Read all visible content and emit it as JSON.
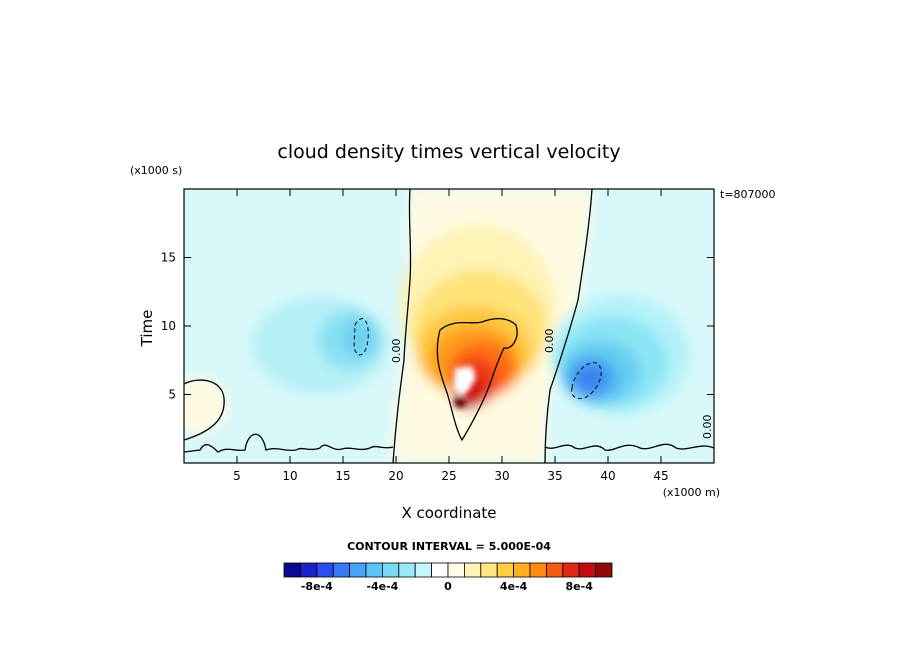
{
  "chart_data": {
    "type": "heatmap",
    "title": "cloud density times vertical velocity",
    "xlabel": "X coordinate",
    "ylabel": "Time",
    "x_unit": "(x1000 m)",
    "y_unit": "(x1000 s)",
    "time_label": "t=807000",
    "xlim": [
      0,
      50
    ],
    "ylim": [
      0,
      20
    ],
    "x_ticks": [
      5,
      10,
      15,
      20,
      25,
      30,
      35,
      40,
      45
    ],
    "y_ticks": [
      5,
      10,
      15
    ],
    "contour_interval_text": "CONTOUR INTERVAL = 5.000E-04",
    "contour_label": "0.00",
    "colorbar": {
      "colors": [
        "#0a0a90",
        "#1a22c8",
        "#2c4cec",
        "#3a78f4",
        "#4aa2f8",
        "#58c6f8",
        "#7ad8f0",
        "#9ae8f6",
        "#c4f6fa",
        "#ffffff",
        "#fffde6",
        "#fff5bc",
        "#ffe680",
        "#ffd040",
        "#ffb020",
        "#ff8c10",
        "#f45a10",
        "#e02812",
        "#c40c10",
        "#900808"
      ],
      "tick_labels": [
        "-8e-4",
        "-4e-4",
        "0",
        "4e-4",
        "8e-4"
      ],
      "tick_values": [
        -0.0008,
        -0.0004,
        0,
        0.0004,
        0.0008
      ],
      "min": -0.001,
      "max": 0.001
    },
    "features": [
      {
        "kind": "positive-max",
        "x": 26.5,
        "y": 5.5,
        "value": 0.001
      },
      {
        "kind": "negative-min",
        "x": 38,
        "y": 5,
        "value": -0.0005
      },
      {
        "kind": "negative-min",
        "x": 15,
        "y": 8,
        "value": -0.00015
      }
    ]
  }
}
